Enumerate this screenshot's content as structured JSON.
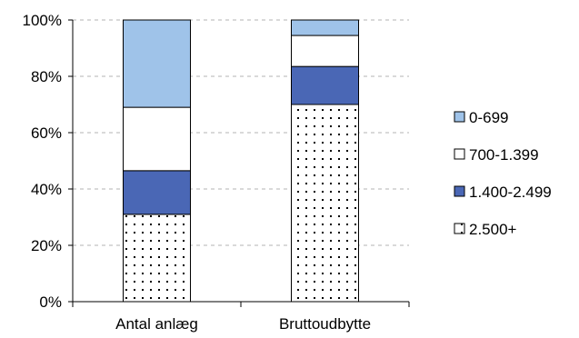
{
  "chart_data": {
    "type": "bar",
    "stacked": true,
    "normalized": true,
    "categories": [
      "Antal anlæg",
      "Bruttoudbytte"
    ],
    "series": [
      {
        "name": "2.500+",
        "values": [
          31,
          70
        ],
        "color": "#ffffff",
        "pattern": "dots"
      },
      {
        "name": "1.400-2.499",
        "values": [
          15.5,
          13.5
        ],
        "color": "#4a67b5",
        "pattern": "solid"
      },
      {
        "name": "700-1.399",
        "values": [
          22.5,
          11
        ],
        "color": "#ffffff",
        "pattern": "solid"
      },
      {
        "name": "0-699",
        "values": [
          31,
          5.5
        ],
        "color": "#9fc3e9",
        "pattern": "solid"
      }
    ],
    "ylim": [
      0,
      100
    ],
    "yticks": [
      "0%",
      "20%",
      "40%",
      "60%",
      "80%",
      "100%"
    ],
    "ytick_values": [
      0,
      20,
      40,
      60,
      80,
      100
    ],
    "grid": true,
    "legend_position": "right",
    "legend_order": [
      "0-699",
      "700-1.399",
      "1.400-2.499",
      "2.500+"
    ],
    "title": "",
    "xlabel": "",
    "ylabel": ""
  }
}
